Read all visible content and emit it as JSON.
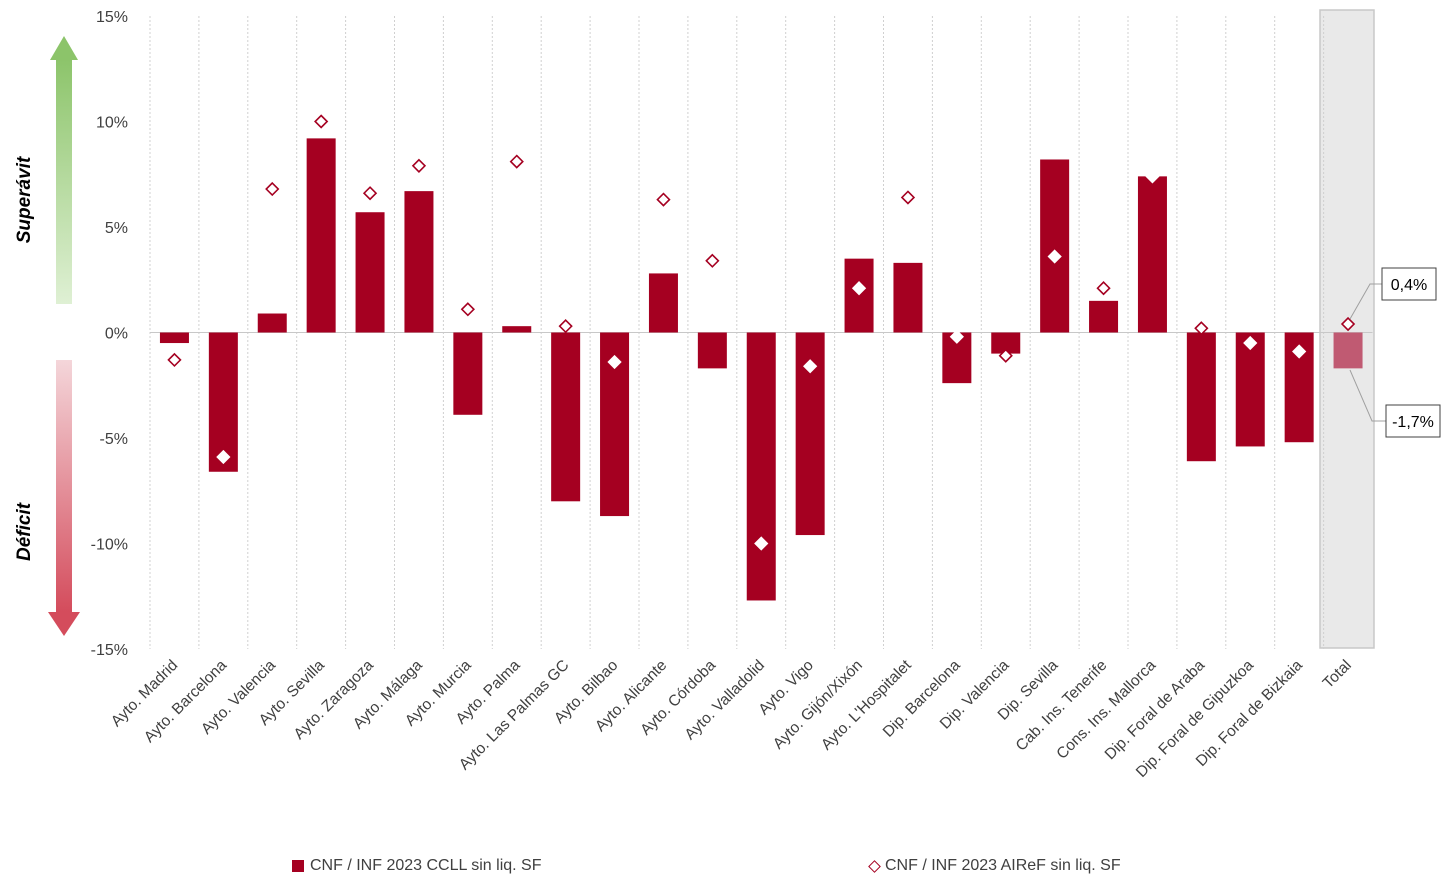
{
  "colors": {
    "bar": "#a50021",
    "total_bar": "#c05a72",
    "diamond": "#a50021",
    "total_band": "#e9e9e9",
    "surplus_arrow": "#9acd7a",
    "deficit_arrow": "#d9606e"
  },
  "side_labels": {
    "surplus": "Superávit",
    "deficit": "Déficit"
  },
  "callouts": {
    "airef_total": "0,4%",
    "ccll_total": "-1,7%"
  },
  "legend": {
    "bar_label": "CNF / INF 2023 CCLL sin liq. SF",
    "diamond_label": "CNF / INF 2023 AIReF sin liq. SF"
  },
  "chart_data": {
    "type": "bar",
    "title": "",
    "xlabel": "",
    "ylabel": "",
    "ylim": [
      -15,
      15
    ],
    "yticks": [
      15,
      10,
      5,
      0,
      -5,
      -10,
      -15
    ],
    "ytick_labels": [
      "15%",
      "10%",
      "5%",
      "0%",
      "-5%",
      "-10%",
      "-15%"
    ],
    "grid": "vertical dotted",
    "legend_position": "bottom",
    "highlight_category": "Total",
    "categories": [
      "Ayto. Madrid",
      "Ayto. Barcelona",
      "Ayto. Valencia",
      "Ayto. Sevilla",
      "Ayto. Zaragoza",
      "Ayto. Málaga",
      "Ayto. Murcia",
      "Ayto. Palma",
      "Ayto. Las Palmas GC",
      "Ayto. Bilbao",
      "Ayto. Alicante",
      "Ayto. Córdoba",
      "Ayto. Valladolid",
      "Ayto. Vigo",
      "Ayto. Gijón/Xixón",
      "Ayto. L'Hospitalet",
      "Dip. Barcelona",
      "Dip. Valencia",
      "Dip. Sevilla",
      "Cab. Ins. Tenerife",
      "Cons. Ins. Mallorca",
      "Dip. Foral de Araba",
      "Dip. Foral de Gipuzkoa",
      "Dip. Foral de Bizkaia",
      "Total"
    ],
    "series": [
      {
        "name": "CNF / INF 2023 CCLL sin liq. SF",
        "kind": "bar",
        "values": [
          -0.5,
          -6.6,
          0.9,
          9.2,
          5.7,
          6.7,
          -3.9,
          0.3,
          -8.0,
          -8.7,
          2.8,
          -1.7,
          -12.7,
          -9.6,
          3.5,
          3.3,
          -2.4,
          -1.0,
          8.2,
          1.5,
          7.4,
          -6.1,
          -5.4,
          -5.2,
          -1.7
        ]
      },
      {
        "name": "CNF / INF 2023 AIReF sin liq. SF",
        "kind": "diamond",
        "values": [
          -1.3,
          -5.9,
          6.8,
          10.0,
          6.6,
          7.9,
          1.1,
          8.1,
          0.3,
          -1.4,
          6.3,
          3.4,
          -10.0,
          -1.6,
          2.1,
          6.4,
          -0.2,
          -1.1,
          3.6,
          2.1,
          7.4,
          0.2,
          -0.5,
          -0.9,
          0.4
        ]
      }
    ]
  }
}
